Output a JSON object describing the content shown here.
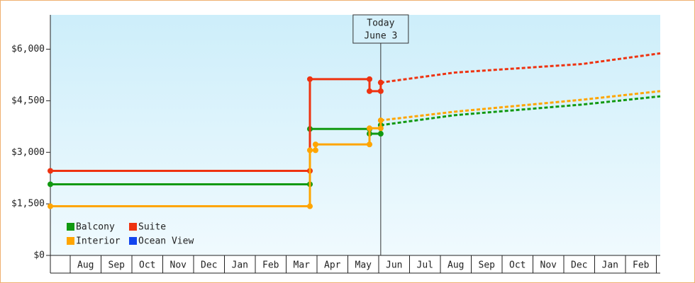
{
  "chart_data": {
    "type": "line",
    "xlim": [
      0,
      19.55
    ],
    "ylim": [
      0,
      7000
    ],
    "yticks": [
      {
        "value": 0,
        "label": "$0"
      },
      {
        "value": 1500,
        "label": "$1,500"
      },
      {
        "value": 3000,
        "label": "$3,000"
      },
      {
        "value": 4500,
        "label": "$4,500"
      },
      {
        "value": 6000,
        "label": "$6,000"
      }
    ],
    "categories": [
      null,
      "Aug",
      "Sep",
      "Oct",
      "Nov",
      "Dec",
      "Jan",
      "Feb",
      "Mar",
      "Apr",
      "May",
      "Jun",
      "Jul",
      "Aug",
      "Sep",
      "Oct",
      "Nov",
      "Dec",
      "Jan",
      "Feb"
    ],
    "annotation": {
      "lines": [
        "Today",
        "June 3"
      ],
      "x": 10.59
    },
    "legend": "bottom-left",
    "series": [
      {
        "name": "Balcony",
        "color": "#119911",
        "x": [
          0,
          8.32,
          8.32,
          10.23,
          10.23,
          10.59,
          10.59
        ],
        "values": [
          2070,
          2070,
          3680,
          3680,
          3540,
          3540,
          3790
        ],
        "forecast_x": [
          10.59,
          12.95,
          17.05,
          19.55
        ],
        "forecast_values": [
          3790,
          4080,
          4390,
          4630
        ]
      },
      {
        "name": "Suite",
        "color": "#ee3311",
        "x": [
          0,
          8.32,
          8.32,
          10.23,
          10.23,
          10.59,
          10.59
        ],
        "values": [
          2460,
          2460,
          5130,
          5130,
          4780,
          4780,
          5030
        ],
        "forecast_x": [
          10.59,
          12.95,
          17.05,
          19.55
        ],
        "forecast_values": [
          5030,
          5320,
          5570,
          5880
        ]
      },
      {
        "name": "Interior",
        "color": "#ffa500",
        "x": [
          0,
          8.32,
          8.32,
          8.5,
          8.5,
          10.23,
          10.23,
          10.59,
          10.59
        ],
        "values": [
          1430,
          1430,
          3060,
          3060,
          3230,
          3230,
          3700,
          3700,
          3930
        ],
        "forecast_x": [
          10.59,
          12.95,
          17.05,
          19.55
        ],
        "forecast_values": [
          3930,
          4180,
          4530,
          4780
        ]
      },
      {
        "name": "Ocean View",
        "color": "#1144ee",
        "x": [],
        "values": [],
        "forecast_x": [],
        "forecast_values": []
      }
    ]
  }
}
